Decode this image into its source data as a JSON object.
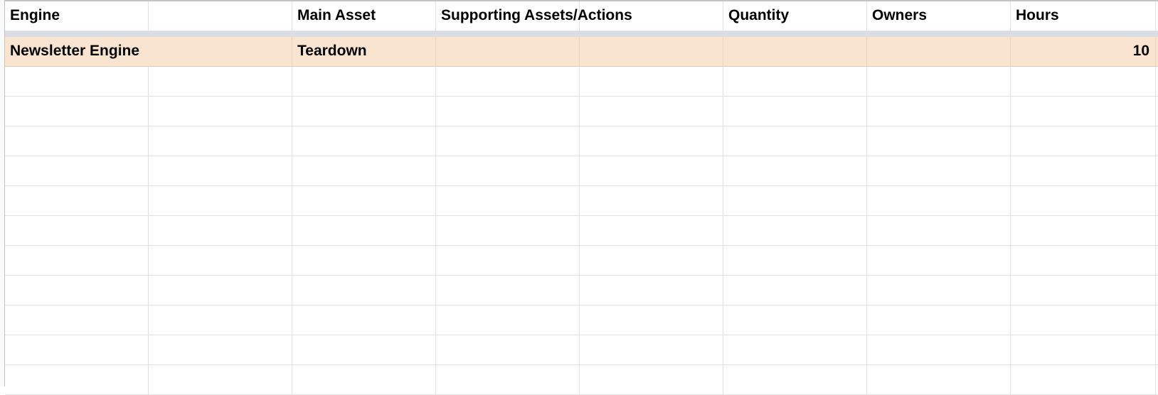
{
  "header": [
    "Engine",
    "",
    "Main Asset",
    "Supporting Assets/Actions",
    "",
    "Quantity",
    "Owners",
    "Hours"
  ],
  "rows": [
    {
      "engine": "Newsletter Engine",
      "main_asset": "Teardown",
      "supporting": "",
      "quantity": "",
      "owners": "",
      "hours": "10"
    }
  ],
  "colors": {
    "highlight_row": "#f9e5cf",
    "frozen_divider": "#dadde3",
    "gridline": "#e2e2e2"
  }
}
